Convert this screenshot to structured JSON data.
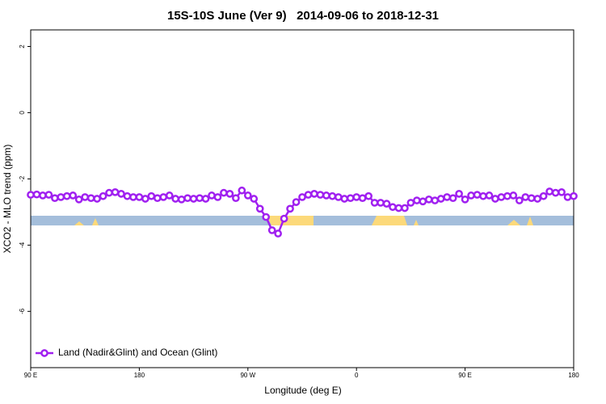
{
  "chart_data": {
    "type": "line",
    "title": "15S-10S June (Ver 9)   2014-09-06 to 2018-12-31",
    "x_label": "Longitude (deg E)",
    "y_label": "XCO2 - MLO trend (ppm)",
    "xlim": [
      90,
      540
    ],
    "ylim": [
      -7.7,
      2.5
    ],
    "xticks": [
      {
        "value": 90,
        "label": "90 E"
      },
      180,
      {
        "value": 270,
        "label": "90 W"
      },
      {
        "value": 360,
        "label": "0"
      },
      {
        "value": 450,
        "label": "90 E"
      },
      {
        "value": 540,
        "label": "180"
      }
    ],
    "yticks": [
      2,
      0,
      -2,
      -4,
      -6
    ],
    "legend_position": "bottomleft",
    "x": [
      90,
      95,
      100,
      105,
      110,
      115,
      120,
      125,
      130,
      135,
      140,
      145,
      150,
      155,
      160,
      165,
      170,
      175,
      180,
      185,
      190,
      195,
      200,
      205,
      210,
      215,
      220,
      225,
      230,
      235,
      240,
      245,
      250,
      255,
      260,
      265,
      270,
      275,
      280,
      285,
      290,
      295,
      300,
      305,
      310,
      315,
      320,
      325,
      330,
      335,
      340,
      345,
      350,
      355,
      360,
      365,
      370,
      375,
      380,
      385,
      390,
      395,
      400,
      405,
      410,
      415,
      420,
      425,
      430,
      435,
      440,
      445,
      450,
      455,
      460,
      465,
      470,
      475,
      480,
      485,
      490,
      495,
      500,
      505,
      510,
      515,
      520,
      525,
      530,
      535,
      540
    ],
    "series": [
      {
        "name": "Land (Nadir&Glint) and Ocean (Glint)",
        "color": "#a020f0",
        "values": [
          -2.48,
          -2.47,
          -2.5,
          -2.48,
          -2.58,
          -2.55,
          -2.52,
          -2.5,
          -2.62,
          -2.55,
          -2.58,
          -2.6,
          -2.52,
          -2.42,
          -2.4,
          -2.45,
          -2.52,
          -2.55,
          -2.55,
          -2.6,
          -2.52,
          -2.58,
          -2.55,
          -2.5,
          -2.6,
          -2.62,
          -2.58,
          -2.6,
          -2.58,
          -2.6,
          -2.5,
          -2.55,
          -2.42,
          -2.45,
          -2.58,
          -2.35,
          -2.5,
          -2.6,
          -2.9,
          -3.15,
          -3.55,
          -3.65,
          -3.2,
          -2.9,
          -2.7,
          -2.55,
          -2.48,
          -2.45,
          -2.48,
          -2.5,
          -2.52,
          -2.55,
          -2.6,
          -2.58,
          -2.55,
          -2.58,
          -2.52,
          -2.72,
          -2.72,
          -2.75,
          -2.85,
          -2.88,
          -2.88,
          -2.72,
          -2.65,
          -2.68,
          -2.62,
          -2.65,
          -2.6,
          -2.55,
          -2.58,
          -2.45,
          -2.62,
          -2.5,
          -2.48,
          -2.52,
          -2.5,
          -2.6,
          -2.55,
          -2.52,
          -2.5,
          -2.65,
          -2.55,
          -2.58,
          -2.6,
          -2.52,
          -2.38,
          -2.42,
          -2.4,
          -2.55,
          -2.52
        ]
      }
    ]
  }
}
